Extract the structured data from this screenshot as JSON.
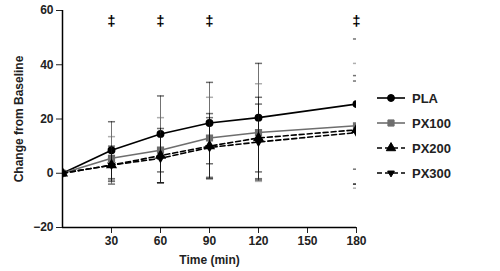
{
  "chart_data": {
    "type": "line",
    "x_label": "Time (min)",
    "y_label": "Change from Baseline",
    "x": [
      0,
      30,
      60,
      90,
      120,
      180
    ],
    "xlim": [
      0,
      180
    ],
    "xticks": [
      30,
      60,
      90,
      120,
      150,
      180
    ],
    "ylim": [
      -20,
      60
    ],
    "yticks": [
      -20,
      0,
      20,
      40,
      60
    ],
    "grid": false,
    "legend": "right",
    "series": [
      {
        "name": "PLA",
        "color": "#000000",
        "marker": "circle",
        "line_style": "solid",
        "values": [
          0,
          8.5,
          14.5,
          18.5,
          20.5,
          25.5
        ],
        "errors": [
          0,
          10.5,
          14,
          15,
          20,
          24
        ]
      },
      {
        "name": "PX100",
        "color": "#6e6e6e",
        "marker": "square",
        "line_style": "solid",
        "values": [
          0,
          5.5,
          8.5,
          13,
          15,
          17.5
        ],
        "errors": [
          0,
          8,
          12,
          15,
          18,
          23
        ]
      },
      {
        "name": "PX200",
        "color": "#000000",
        "marker": "triangle",
        "line_style": "dashed",
        "values": [
          0,
          3,
          6.5,
          10,
          13,
          16
        ],
        "errors": [
          0,
          7,
          10,
          12,
          15,
          20
        ]
      },
      {
        "name": "PX300",
        "color": "#000000",
        "marker": "triangle-down",
        "line_style": "dashed",
        "values": [
          0,
          3,
          5.5,
          9.5,
          11.5,
          15
        ],
        "errors": [
          0,
          6,
          9,
          11,
          14,
          19
        ]
      }
    ],
    "annotations": [
      {
        "text": "‡",
        "x": 30,
        "y": 56
      },
      {
        "text": "‡",
        "x": 60,
        "y": 56
      },
      {
        "text": "‡",
        "x": 90,
        "y": 56
      },
      {
        "text": "‡",
        "x": 180,
        "y": 56
      }
    ]
  }
}
